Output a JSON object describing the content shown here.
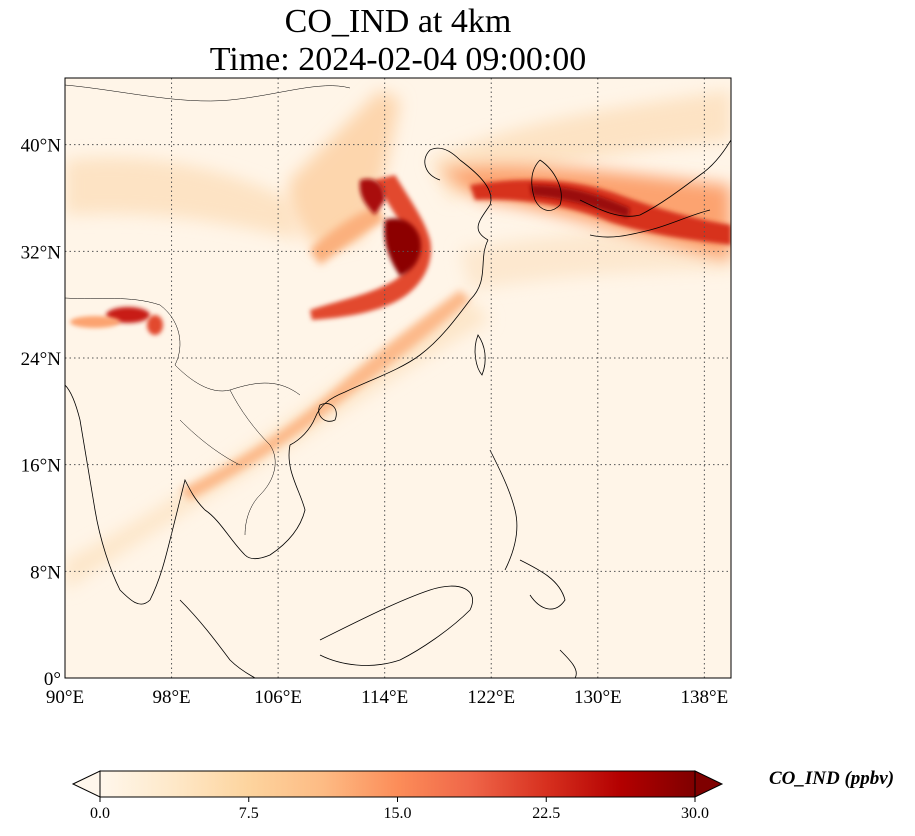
{
  "title": {
    "line1": "CO_IND at 4km",
    "line2": "Time: 2024-02-04 09:00:00"
  },
  "map": {
    "lon_range": [
      90,
      140
    ],
    "lat_range": [
      0,
      45
    ],
    "lon_ticks": [
      "90°E",
      "98°E",
      "106°E",
      "114°E",
      "122°E",
      "130°E",
      "138°E"
    ],
    "lat_ticks": [
      "0°",
      "8°N",
      "16°N",
      "24°N",
      "32°N",
      "40°N"
    ],
    "gridlines": "dotted"
  },
  "colorbar": {
    "label": "CO_IND (ppbv)",
    "ticks": [
      "0.0",
      "7.5",
      "15.0",
      "22.5",
      "30.0"
    ],
    "range": [
      0,
      30
    ],
    "extend": "both",
    "colormap": "OrRd",
    "colors": [
      "#fff7ec",
      "#fee8c8",
      "#fdd49e",
      "#fdbb84",
      "#fc8d59",
      "#ef6548",
      "#d7301f",
      "#b30000",
      "#7f0000"
    ]
  }
}
